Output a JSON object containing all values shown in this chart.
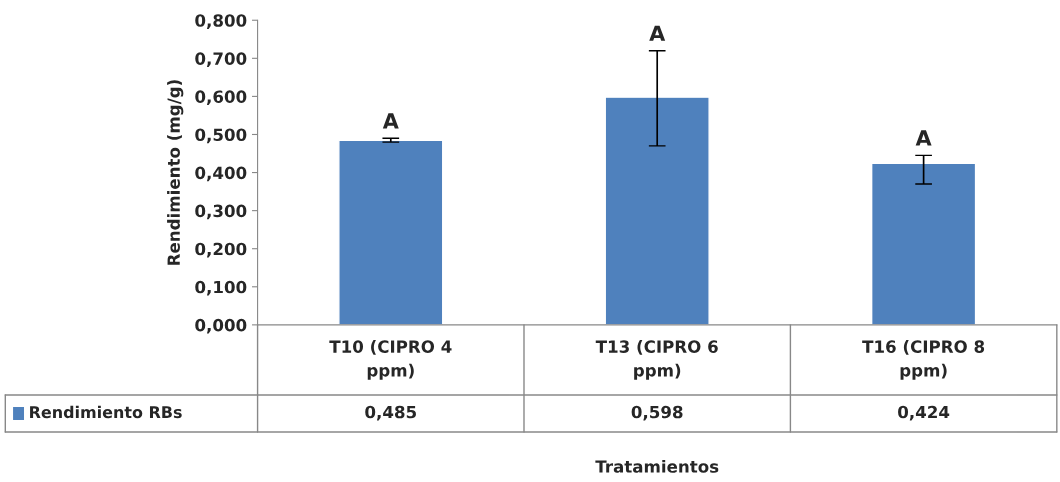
{
  "chart_data": {
    "type": "bar",
    "xlabel": "Tratamientos",
    "ylabel": "Rendimiento (mg/g)",
    "categories": [
      "T10 (CIPRO 4 ppm)",
      "T13 (CIPRO 6 ppm)",
      "T16 (CIPRO 8 ppm)"
    ],
    "series": [
      {
        "name": "Rendimiento RBs",
        "color": "#4f81bd",
        "values": [
          0.485,
          0.598,
          0.424
        ],
        "errors": [
          [
            0.48,
            0.49
          ],
          [
            0.47,
            0.72
          ],
          [
            0.37,
            0.445
          ]
        ]
      }
    ],
    "value_labels": [
      "0,485",
      "0,598",
      "0,424"
    ],
    "ylim": [
      0,
      0.8
    ],
    "yticks": [
      {
        "value": 0,
        "label": "0,000"
      },
      {
        "value": 0.1,
        "label": "0,100"
      },
      {
        "value": 0.2,
        "label": "0,200"
      },
      {
        "value": 0.3,
        "label": "0,300"
      },
      {
        "value": 0.4,
        "label": "0,400"
      },
      {
        "value": 0.5,
        "label": "0,500"
      },
      {
        "value": 0.6,
        "label": "0,600"
      },
      {
        "value": 0.7,
        "label": "0,700"
      },
      {
        "value": 0.8,
        "label": "0,800"
      }
    ],
    "annotations": [
      {
        "text": "A",
        "x": "T10 (CIPRO 4 ppm)",
        "y": 0.49
      },
      {
        "text": "A",
        "x": "T13 (CIPRO 6 ppm)",
        "y": 0.72
      },
      {
        "text": "A",
        "x": "T16 (CIPRO 8 ppm)",
        "y": 0.445
      }
    ],
    "grid": false,
    "legend": "bottom left"
  }
}
